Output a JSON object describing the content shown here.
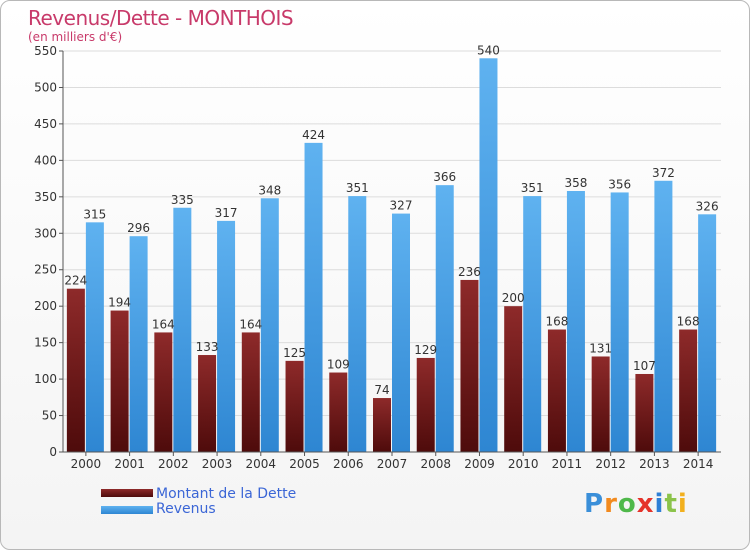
{
  "header": {
    "title": "Revenus/Dette - MONTHOIS",
    "subtitle": "(en milliers d'€)"
  },
  "legend": {
    "debt_label": "Montant de la Dette",
    "revenue_label": "Revenus"
  },
  "logo": {
    "text": "Proxiti",
    "letters": [
      "P",
      "r",
      "o",
      "x",
      "i",
      "t",
      "i"
    ],
    "colors": [
      "#3a8fd9",
      "#f28a1e",
      "#4fb84a",
      "#e5332a",
      "#2f7fd6",
      "#8bc34a",
      "#f2b01e"
    ]
  },
  "colors": {
    "debt": "#7a1c1c",
    "revenue": "#4da3e8",
    "title": "#c83a6a",
    "legend_text": "#3b66d6"
  },
  "chart_data": {
    "type": "bar",
    "title": "Revenus/Dette - MONTHOIS",
    "subtitle": "(en milliers d'€)",
    "categories": [
      "2000",
      "2001",
      "2002",
      "2003",
      "2004",
      "2005",
      "2006",
      "2007",
      "2008",
      "2009",
      "2010",
      "2011",
      "2012",
      "2013",
      "2014"
    ],
    "series": [
      {
        "name": "Montant de la Dette",
        "values": [
          224,
          194,
          164,
          133,
          164,
          125,
          109,
          74,
          129,
          236,
          200,
          168,
          131,
          107,
          168
        ]
      },
      {
        "name": "Revenus",
        "values": [
          315,
          296,
          335,
          317,
          348,
          424,
          351,
          327,
          366,
          540,
          351,
          358,
          356,
          372,
          326
        ]
      }
    ],
    "ylim": [
      0,
      550
    ],
    "yticks": [
      0,
      50,
      100,
      150,
      200,
      250,
      300,
      350,
      400,
      450,
      500,
      550
    ],
    "grid": true,
    "legend_position": "bottom-left"
  }
}
